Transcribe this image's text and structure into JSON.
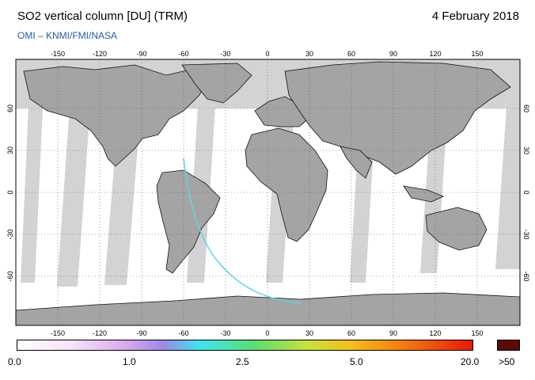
{
  "header": {
    "title": "SO2 vertical column [DU] (TRM)",
    "date": "4 February 2018",
    "subtitle": "OMI  –  KNMI/FMI/NASA"
  },
  "map": {
    "lon_ticks": [
      "-150",
      "-120",
      "-90",
      "-60",
      "-30",
      "0",
      "30",
      "60",
      "90",
      "120",
      "150"
    ],
    "lat_ticks": [
      "60",
      "30",
      "0",
      "-30",
      "-60"
    ],
    "colors": {
      "ocean_swath": "#ffffff",
      "gap": "#d3d3d3",
      "land": "#a4a4a4",
      "plume": "#58d7e8"
    }
  },
  "colorbar": {
    "labels": {
      "v0": "0.0",
      "v1": "1.0",
      "v2": "2.5",
      "v3": "5.0",
      "v4": "20.0",
      "over": ">50"
    },
    "colors": [
      "#ffffff",
      "#f4dcf7",
      "#cfa2ee",
      "#9d8ae6",
      "#3ee4f2",
      "#58e070",
      "#c9e03c",
      "#f4c01a",
      "#f47a10",
      "#e81808"
    ],
    "over_color": "#5c0a08"
  }
}
